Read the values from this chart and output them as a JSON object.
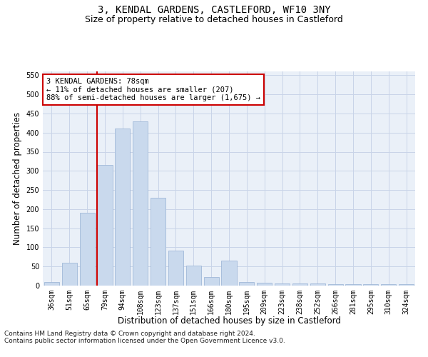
{
  "title": "3, KENDAL GARDENS, CASTLEFORD, WF10 3NY",
  "subtitle": "Size of property relative to detached houses in Castleford",
  "xlabel": "Distribution of detached houses by size in Castleford",
  "ylabel": "Number of detached properties",
  "categories": [
    "36sqm",
    "51sqm",
    "65sqm",
    "79sqm",
    "94sqm",
    "108sqm",
    "123sqm",
    "137sqm",
    "151sqm",
    "166sqm",
    "180sqm",
    "195sqm",
    "209sqm",
    "223sqm",
    "238sqm",
    "252sqm",
    "266sqm",
    "281sqm",
    "295sqm",
    "310sqm",
    "324sqm"
  ],
  "values": [
    10,
    60,
    190,
    315,
    410,
    430,
    230,
    92,
    53,
    22,
    65,
    10,
    8,
    5,
    5,
    5,
    4,
    3,
    3,
    3,
    3
  ],
  "bar_color": "#c9d9ed",
  "bar_edge_color": "#a0b8d8",
  "red_line_index": 3,
  "annotation_line1": "3 KENDAL GARDENS: 78sqm",
  "annotation_line2": "← 11% of detached houses are smaller (207)",
  "annotation_line3": "88% of semi-detached houses are larger (1,675) →",
  "annotation_box_color": "#ffffff",
  "annotation_box_edge": "#cc0000",
  "red_line_color": "#cc0000",
  "ylim": [
    0,
    560
  ],
  "yticks": [
    0,
    50,
    100,
    150,
    200,
    250,
    300,
    350,
    400,
    450,
    500,
    550
  ],
  "footer1": "Contains HM Land Registry data © Crown copyright and database right 2024.",
  "footer2": "Contains public sector information licensed under the Open Government Licence v3.0.",
  "bg_color": "#ffffff",
  "plot_bg_color": "#eaf0f8",
  "grid_color": "#c8d4e8",
  "title_fontsize": 10,
  "subtitle_fontsize": 9,
  "axis_label_fontsize": 8.5,
  "tick_fontsize": 7,
  "annotation_fontsize": 7.5,
  "footer_fontsize": 6.5
}
